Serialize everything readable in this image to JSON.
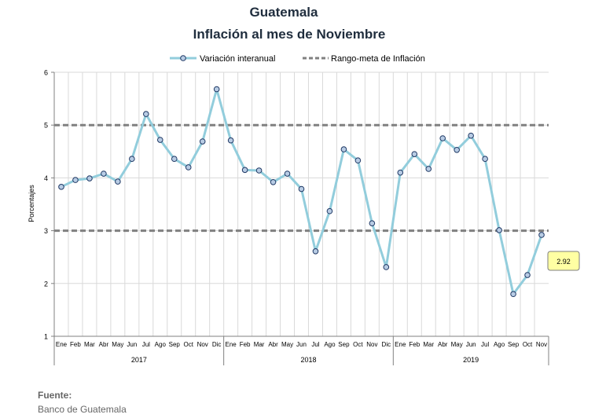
{
  "chart_data": {
    "type": "line",
    "title": "Guatemala",
    "subtitle": "Inflación al mes de Noviembre",
    "ylabel": "Porcentajes",
    "ylim": [
      1,
      6
    ],
    "yticks": [
      1,
      2,
      3,
      4,
      5,
      6
    ],
    "grid": true,
    "legend_position": "top",
    "month_labels": [
      "Ene",
      "Feb",
      "Mar",
      "Abr",
      "May",
      "Jun",
      "Jul",
      "Ago",
      "Sep",
      "Oct",
      "Nov",
      "Dic",
      "Ene",
      "Feb",
      "Mar",
      "Abr",
      "May",
      "Jun",
      "Jul",
      "Ago",
      "Sep",
      "Oct",
      "Nov",
      "Dic",
      "Ene",
      "Feb",
      "Mar",
      "Abr",
      "May",
      "Jun",
      "Jul",
      "Ago",
      "Sep",
      "Oct",
      "Nov"
    ],
    "year_groups": [
      {
        "label": "2017",
        "months": 12
      },
      {
        "label": "2018",
        "months": 12
      },
      {
        "label": "2019",
        "months": 11
      }
    ],
    "series": [
      {
        "name": "Variación interanual",
        "color": "#92cddc",
        "marker_fill": "#b8cce4",
        "marker_stroke": "#1f3864",
        "values": [
          3.83,
          3.96,
          3.99,
          4.08,
          3.93,
          4.36,
          5.21,
          4.72,
          4.36,
          4.2,
          4.69,
          5.68,
          4.71,
          4.15,
          4.14,
          3.92,
          4.08,
          3.79,
          2.61,
          3.37,
          4.54,
          4.33,
          3.14,
          2.31,
          4.1,
          4.45,
          4.17,
          4.75,
          4.53,
          4.8,
          4.36,
          3.01,
          1.8,
          2.16,
          2.92
        ]
      },
      {
        "name": "Rango-meta de Inflación",
        "color": "#808080",
        "style": "dashed",
        "bounds": [
          3,
          5
        ]
      }
    ],
    "annotation": {
      "label": "2.92"
    }
  },
  "source": {
    "label": "Fuente:",
    "value": "Banco de Guatemala"
  }
}
